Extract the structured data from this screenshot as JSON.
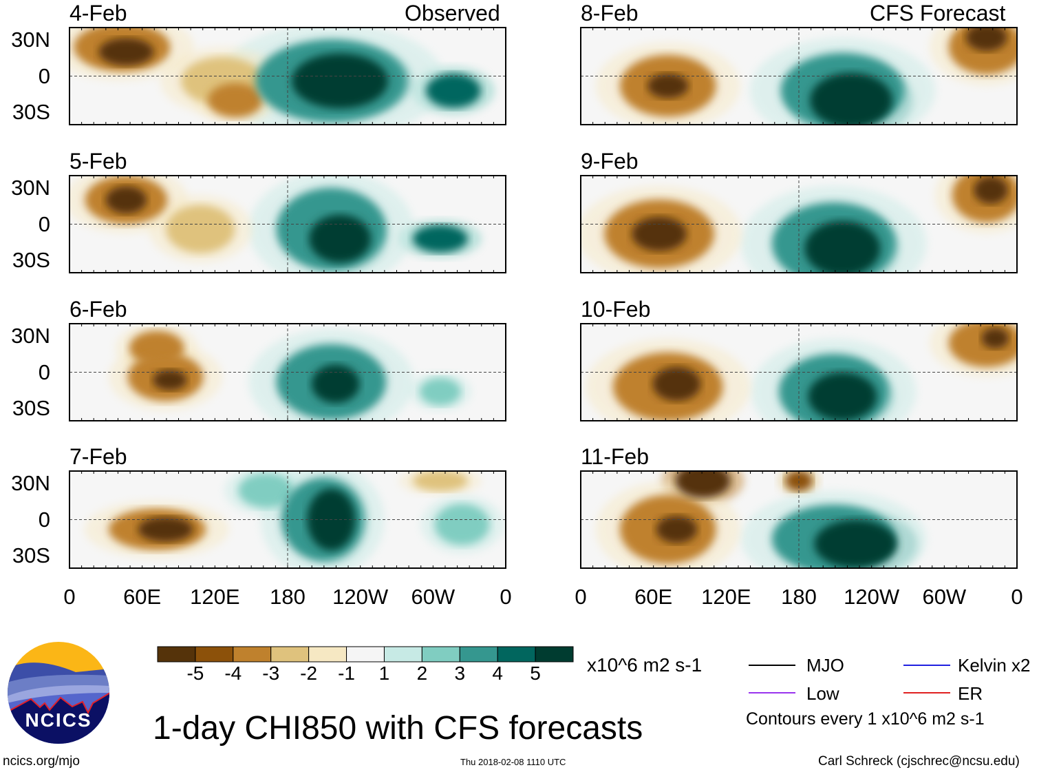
{
  "header": {
    "observed_label": "Observed",
    "forecast_label": "CFS Forecast"
  },
  "panels_left": [
    {
      "date": "4-Feb"
    },
    {
      "date": "5-Feb"
    },
    {
      "date": "6-Feb"
    },
    {
      "date": "7-Feb"
    }
  ],
  "panels_right": [
    {
      "date": "8-Feb"
    },
    {
      "date": "9-Feb"
    },
    {
      "date": "10-Feb"
    },
    {
      "date": "11-Feb"
    }
  ],
  "chart_data": {
    "type": "heatmap",
    "title": "1-day CHI850 with CFS forecasts",
    "variable": "CHI850",
    "units": "x10^6 m2 s-1",
    "y_ticks": [
      "30N",
      "0",
      "30S"
    ],
    "x_ticks": [
      "0",
      "60E",
      "120E",
      "180",
      "120W",
      "60W",
      "0"
    ],
    "colorbar": {
      "levels": [
        "-5",
        "-4",
        "-3",
        "-2",
        "-1",
        "1",
        "2",
        "3",
        "4",
        "5"
      ],
      "colors": [
        "#55330a",
        "#8c510a",
        "#bf812d",
        "#dfc27d",
        "#f6e8c3",
        "#f5f5f5",
        "#c7eae5",
        "#80cdc1",
        "#35978f",
        "#01665e",
        "#003c30"
      ]
    },
    "legend": [
      {
        "label": "MJO",
        "color": "#000000"
      },
      {
        "label": "Kelvin x2",
        "color": "#2020e0"
      },
      {
        "label": "Low",
        "color": "#9933ee"
      },
      {
        "label": "ER",
        "color": "#e02020"
      }
    ],
    "contour_note": "Contours every 1 x10^6 m2 s-1"
  },
  "footer": {
    "logo_text": "NCICS",
    "url": "ncics.org/mjo",
    "timestamp": "Thu 2018-02-08 1110 UTC",
    "author": "Carl Schreck (cjschrec@ncsu.edu)"
  }
}
